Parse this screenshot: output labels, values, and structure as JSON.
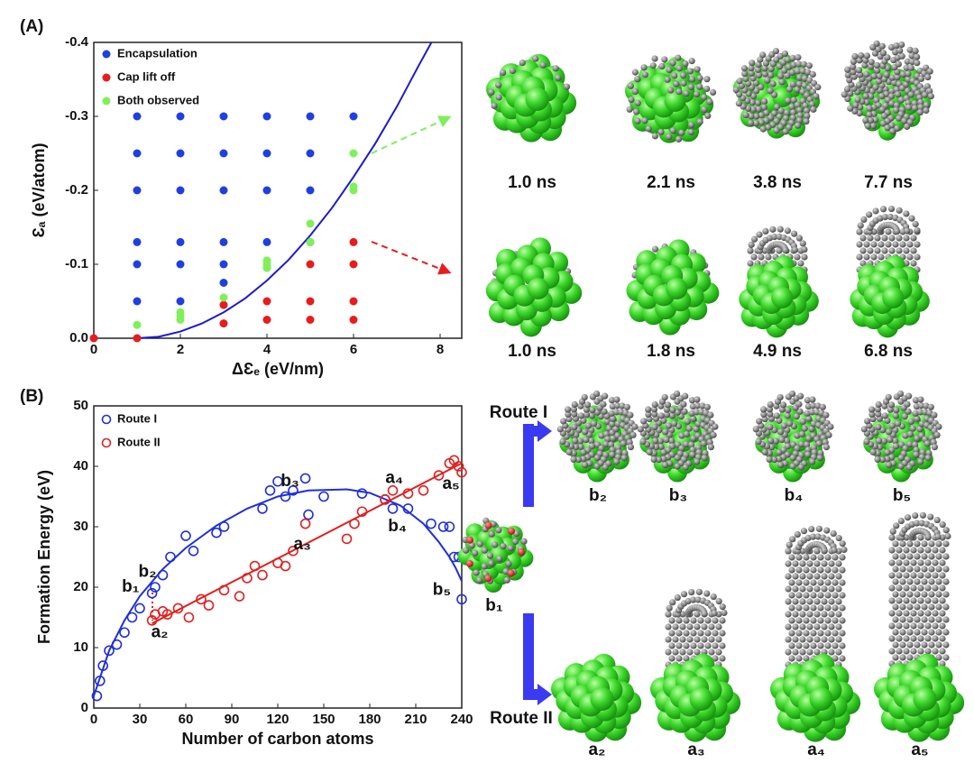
{
  "chart_data": [
    {
      "type": "scatter",
      "panel_label": "(A)",
      "x_label": "ΔƐₑ (eV/nm)",
      "y_label": "Ɛₐ (eV/atom)",
      "xlim": [
        0,
        8.5
      ],
      "ylim": [
        0,
        -0.4
      ],
      "xticks": [
        0,
        2,
        4,
        6,
        8
      ],
      "yticks": [
        {
          "value": 0,
          "label": "0.0"
        },
        -0.1,
        -0.2,
        -0.3,
        -0.4
      ],
      "legend": "upper left",
      "marker": "filled",
      "series": [
        {
          "name": "Encapsulation",
          "color": "#1f3fe0",
          "x": [
            1,
            1,
            1,
            1,
            1,
            1,
            2,
            2,
            2,
            2,
            2,
            2,
            3,
            3,
            3,
            3,
            3,
            3,
            4,
            4,
            4,
            4,
            5,
            5,
            5,
            5,
            6
          ],
          "values": [
            -0.3,
            -0.25,
            -0.2,
            -0.13,
            -0.1,
            -0.05,
            -0.3,
            -0.25,
            -0.2,
            -0.13,
            -0.1,
            -0.05,
            -0.3,
            -0.25,
            -0.2,
            -0.13,
            -0.1,
            -0.075,
            -0.3,
            -0.25,
            -0.2,
            -0.13,
            -0.3,
            -0.25,
            -0.2,
            -0.13,
            -0.3
          ]
        },
        {
          "name": "Cap lift off",
          "color": "#e81c1c",
          "x": [
            0,
            1,
            3,
            3,
            4,
            4,
            5,
            5,
            5,
            6,
            6,
            6,
            6
          ],
          "values": [
            0,
            0,
            -0.045,
            -0.02,
            -0.05,
            -0.025,
            -0.1,
            -0.05,
            -0.025,
            -0.13,
            -0.1,
            -0.05,
            -0.025
          ]
        },
        {
          "name": "Both observed",
          "color": "#7ff05a",
          "x": [
            1,
            2,
            2,
            2,
            3,
            4,
            4,
            4,
            5,
            5,
            6,
            6,
            6
          ],
          "values": [
            -0.018,
            -0.025,
            -0.03,
            -0.035,
            -0.055,
            -0.095,
            -0.1,
            -0.105,
            -0.13,
            -0.155,
            -0.25,
            -0.2,
            -0.205
          ]
        }
      ],
      "fit_lines": [
        {
          "color": "#1a1ad0",
          "x": [
            1,
            1.5,
            2,
            2.5,
            3,
            3.5,
            4,
            4.5,
            5,
            5.5,
            6,
            6.5,
            7,
            7.5,
            7.8
          ],
          "values": [
            0,
            -0.002,
            -0.009,
            -0.02,
            -0.035,
            -0.054,
            -0.078,
            -0.106,
            -0.139,
            -0.176,
            -0.218,
            -0.263,
            -0.313,
            -0.368,
            -0.4
          ]
        }
      ]
    },
    {
      "type": "scatter",
      "panel_label": "(B)",
      "x_label": "Number of carbon atoms",
      "y_label": "Formation Energy (eV)",
      "xlim": [
        0,
        240
      ],
      "ylim": [
        0,
        50
      ],
      "xticks": [
        0,
        30,
        60,
        90,
        120,
        150,
        180,
        210,
        240
      ],
      "yticks": [
        0,
        10,
        20,
        30,
        40,
        50
      ],
      "legend": "upper left",
      "marker": "open",
      "series": [
        {
          "name": "Route I",
          "color": "#1f2fd8",
          "x": [
            2,
            4,
            6,
            10,
            15,
            20,
            25,
            30,
            38,
            40,
            45,
            50,
            60,
            65,
            80,
            85,
            110,
            115,
            120,
            125,
            130,
            138,
            140,
            150,
            175,
            190,
            195,
            205,
            220,
            228,
            232,
            235,
            238,
            240
          ],
          "values": [
            2,
            4.5,
            7,
            9.5,
            10.5,
            12.5,
            15,
            16.5,
            19,
            20,
            22,
            25,
            28.5,
            26,
            29,
            30,
            33,
            36,
            37.5,
            35,
            36,
            38,
            32,
            35,
            35.5,
            34.5,
            33,
            33,
            30.5,
            30,
            30,
            25,
            25,
            18
          ]
        },
        {
          "name": "Route II",
          "color": "#e02020",
          "x": [
            38,
            40,
            45,
            48,
            55,
            62,
            70,
            75,
            85,
            95,
            100,
            105,
            110,
            120,
            125,
            130,
            138,
            165,
            170,
            175,
            190,
            195,
            205,
            215,
            225,
            232,
            235,
            238,
            240
          ],
          "values": [
            14.5,
            15.5,
            16,
            15.5,
            16.5,
            15,
            18,
            17,
            19.5,
            18.5,
            21.5,
            23.5,
            22,
            24,
            23.5,
            26,
            30.5,
            28,
            30.5,
            32.5,
            34.5,
            36,
            35.5,
            36,
            38.5,
            40.5,
            41,
            40,
            39
          ]
        }
      ],
      "fit_lines": [
        {
          "color": "#1f2fd8",
          "x": [
            0,
            10,
            20,
            30,
            45,
            60,
            80,
            100,
            120,
            140,
            165,
            180,
            200,
            215,
            225,
            232,
            236,
            240
          ],
          "values": [
            2,
            9.5,
            14.5,
            18.5,
            23,
            26.5,
            30.2,
            33,
            35,
            36,
            36.2,
            35.6,
            33.5,
            30.5,
            27.5,
            25,
            23.2,
            21
          ]
        },
        {
          "color": "#e02020",
          "x": [
            38,
            240
          ],
          "values": [
            14,
            40.5
          ]
        }
      ],
      "annotations": [
        {
          "text": "b₁",
          "x": 24,
          "y": 20
        },
        {
          "text": "b₂",
          "x": 35,
          "y": 22.5
        },
        {
          "text": "b₃",
          "x": 128,
          "y": 37.5
        },
        {
          "text": "b₄",
          "x": 198,
          "y": 30
        },
        {
          "text": "b₅",
          "x": 227,
          "y": 19.5
        },
        {
          "text": "a₂",
          "x": 43,
          "y": 12.5
        },
        {
          "text": "a₃",
          "x": 136,
          "y": 27
        },
        {
          "text": "a₄",
          "x": 196,
          "y": 38
        },
        {
          "text": "a₅",
          "x": 233,
          "y": 37
        }
      ]
    }
  ],
  "snapshots": {
    "encapsulation_times": [
      "1.0 ns",
      "2.1 ns",
      "3.8 ns",
      "7.7 ns"
    ],
    "cap_lift_off_times": [
      "1.0 ns",
      "1.8 ns",
      "4.9 ns",
      "6.8 ns"
    ],
    "route_1": "Route I",
    "route_2": "Route II",
    "start": "b₁",
    "route_1_labels": [
      "b₂",
      "b₃",
      "b₄",
      "b₅"
    ],
    "route_2_labels": [
      "a₂",
      "a₃",
      "a₄",
      "a₅"
    ]
  }
}
